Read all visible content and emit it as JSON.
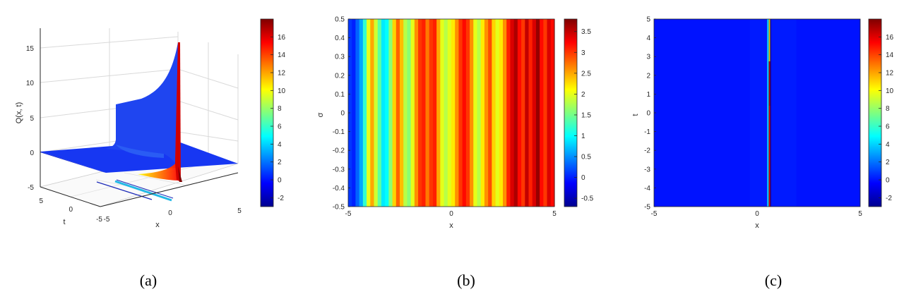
{
  "colors": {
    "jet": [
      "#00008f",
      "#0000ff",
      "#007fff",
      "#00ffff",
      "#7fff7f",
      "#ffff00",
      "#ff7f00",
      "#ff0000",
      "#7f0000"
    ],
    "axis": "#262626",
    "grid": "#d9d9d9",
    "plane": "#1a2ef0"
  },
  "chart_data": [
    {
      "id": "a",
      "type": "surface3d",
      "caption": "(a)",
      "xlabel": "x",
      "ylabel": "t",
      "zlabel": "Q(x, t)",
      "x_ticks": [
        "-5",
        "0",
        "5"
      ],
      "t_ticks": [
        "-5",
        "0",
        "5"
      ],
      "z_ticks": [
        "15",
        "10",
        "5",
        "0",
        "-5"
      ],
      "xlim": [
        -5,
        5
      ],
      "tlim": [
        -5,
        5
      ],
      "zlim": [
        -5,
        17
      ],
      "colorbar": {
        "range": [
          -3,
          18
        ],
        "ticks": [
          "16",
          "14",
          "12",
          "10",
          "8",
          "6",
          "4",
          "2",
          "0",
          "-2"
        ]
      }
    },
    {
      "id": "b",
      "type": "heatmap",
      "caption": "(b)",
      "xlabel": "x",
      "ylabel": "σ",
      "xlim": [
        -5,
        5
      ],
      "ylim": [
        -0.5,
        0.5
      ],
      "x_ticks": [
        "-5",
        "0",
        "5"
      ],
      "y_ticks": [
        "0.5",
        "0.4",
        "0.3",
        "0.2",
        "0.1",
        "0",
        "-0.1",
        "-0.2",
        "-0.3",
        "-0.4",
        "-0.5"
      ],
      "colorbar": {
        "range": [
          -0.7,
          3.8
        ],
        "ticks": [
          "3.5",
          "3",
          "2.5",
          "2",
          "1.5",
          "1",
          "0.5",
          "0",
          "-0.5"
        ]
      },
      "column_values": [
        0.1,
        0.0,
        0.3,
        0.6,
        1.2,
        2.0,
        2.5,
        1.9,
        1.4,
        0.9,
        1.0,
        1.6,
        2.3,
        2.8,
        2.4,
        1.8,
        1.6,
        2.0,
        2.6,
        3.0,
        3.1,
        2.7,
        3.0,
        3.1,
        2.5,
        2.0,
        1.8,
        2.0,
        2.2,
        2.6,
        3.0,
        3.2,
        3.0,
        2.6,
        2.0,
        1.8,
        2.2,
        2.6,
        2.9,
        2.3,
        2.0,
        2.2,
        2.6,
        3.1,
        3.4,
        3.6,
        3.2,
        3.0,
        3.5,
        3.1,
        3.4,
        3.7,
        3.2,
        3.0,
        3.4,
        3.2
      ]
    },
    {
      "id": "c",
      "type": "heatmap",
      "caption": "(c)",
      "xlabel": "x",
      "ylabel": "t",
      "xlim": [
        -5,
        5
      ],
      "ylim": [
        -5,
        5
      ],
      "x_ticks": [
        "-5",
        "0",
        "5"
      ],
      "y_ticks": [
        "5",
        "4",
        "3",
        "2",
        "1",
        "0",
        "-1",
        "-2",
        "-3",
        "-4",
        "-5"
      ],
      "colorbar": {
        "range": [
          -3,
          18
        ],
        "ticks": [
          "16",
          "14",
          "12",
          "10",
          "8",
          "6",
          "4",
          "2",
          "0",
          "-2"
        ]
      },
      "background_value": 0.0,
      "peak_x": 0.6,
      "peak_value": 17
    }
  ]
}
